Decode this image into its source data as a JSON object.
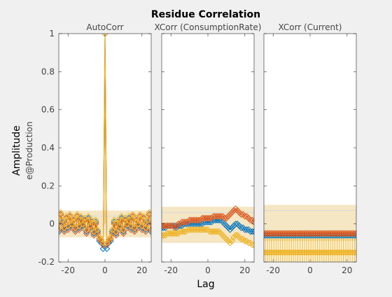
{
  "chart_data": {
    "type": "scatter",
    "title": "Residue Correlation",
    "xlabel": "Lag",
    "ylabel": "Amplitude",
    "ylabel_secondary": "e@Production",
    "ylim": [
      -0.2,
      1
    ],
    "yticks": [
      "-0.2",
      "0",
      "0.2",
      "0.4",
      "0.6",
      "0.8",
      "1"
    ],
    "xlim": [
      -25,
      25
    ],
    "xticks": [
      "-20",
      "0",
      "20"
    ],
    "colors": {
      "blue": "#0072bd",
      "orange": "#d95319",
      "yellow": "#edb120",
      "band": "#f5e6c4",
      "axes_bg": "#ffffff",
      "fig_bg": "#f0f0f0"
    },
    "panels": [
      {
        "title": "AutoCorr",
        "confidence_band": [
          -0.07,
          0.07
        ],
        "center_spike": {
          "series": "yellow",
          "x": 0,
          "y": 1
        },
        "series": [
          {
            "color": "blue",
            "values": [
              -0.04,
              0.05,
              0.01,
              -0.03,
              0.03,
              -0.02,
              0.04,
              -0.01,
              0.02,
              -0.03,
              0.04,
              -0.02,
              0.03,
              -0.01,
              0.02,
              -0.04,
              0.03,
              -0.02,
              0.01,
              -0.05,
              0.01,
              -0.04,
              -0.09,
              -0.1,
              -0.13,
              1.0,
              -0.13,
              -0.1,
              -0.09,
              -0.04,
              0.01,
              -0.05,
              0.01,
              -0.02,
              0.03,
              -0.04,
              0.02,
              -0.01,
              0.03,
              -0.02,
              0.04,
              -0.03,
              0.02,
              -0.01,
              0.04,
              -0.02,
              0.03,
              -0.03,
              0.01,
              0.05,
              -0.04
            ]
          },
          {
            "color": "orange",
            "values": [
              -0.03,
              0.05,
              0.0,
              -0.04,
              0.03,
              -0.03,
              0.04,
              -0.02,
              0.02,
              -0.04,
              0.04,
              -0.03,
              0.02,
              -0.02,
              0.02,
              -0.05,
              0.02,
              -0.03,
              0.0,
              -0.06,
              0.0,
              -0.05,
              -0.08,
              -0.09,
              -0.11,
              1.0,
              -0.11,
              -0.09,
              -0.08,
              -0.05,
              0.0,
              -0.06,
              0.0,
              -0.03,
              0.02,
              -0.05,
              0.02,
              -0.02,
              0.02,
              -0.03,
              0.04,
              -0.04,
              0.02,
              -0.02,
              0.04,
              -0.03,
              0.03,
              -0.04,
              0.0,
              0.05,
              -0.03
            ]
          },
          {
            "color": "yellow",
            "values": [
              -0.02,
              0.06,
              0.02,
              -0.02,
              0.04,
              -0.01,
              0.05,
              0.0,
              0.03,
              -0.02,
              0.05,
              -0.01,
              0.04,
              0.0,
              0.03,
              -0.03,
              0.04,
              -0.01,
              0.02,
              -0.04,
              0.02,
              -0.03,
              -0.07,
              -0.08,
              -0.1,
              1.0,
              -0.1,
              -0.08,
              -0.07,
              -0.03,
              0.02,
              -0.04,
              0.02,
              -0.01,
              0.04,
              -0.03,
              0.03,
              0.0,
              0.04,
              -0.01,
              0.05,
              -0.02,
              0.03,
              0.0,
              0.05,
              -0.01,
              0.04,
              -0.02,
              0.02,
              0.06,
              -0.02
            ]
          }
        ]
      },
      {
        "title": "XCorr (ConsumptionRate)",
        "confidence_band": [
          -0.1,
          0.09
        ],
        "series": [
          {
            "color": "blue",
            "values": [
              -0.02,
              -0.02,
              -0.02,
              -0.01,
              -0.01,
              -0.01,
              -0.01,
              -0.01,
              -0.02,
              -0.01,
              -0.01,
              -0.01,
              0.0,
              0.0,
              0.0,
              0.0,
              0.0,
              0.0,
              0.0,
              0.0,
              0.0,
              0.0,
              0.0,
              0.01,
              0.01,
              0.01,
              0.01,
              0.01,
              0.02,
              0.02,
              0.02,
              0.02,
              0.02,
              0.01,
              0.0,
              -0.01,
              -0.02,
              -0.03,
              -0.02,
              -0.01,
              0.0,
              0.0,
              -0.01,
              -0.02,
              -0.02,
              -0.03,
              -0.03,
              -0.03,
              -0.04,
              -0.04,
              -0.04
            ]
          },
          {
            "color": "orange",
            "values": [
              -0.01,
              -0.01,
              -0.01,
              -0.01,
              -0.01,
              -0.01,
              -0.01,
              -0.02,
              -0.01,
              0.0,
              0.0,
              0.01,
              0.01,
              0.01,
              0.01,
              0.02,
              0.02,
              0.02,
              0.02,
              0.02,
              0.02,
              0.02,
              0.03,
              0.03,
              0.03,
              0.03,
              0.03,
              0.03,
              0.04,
              0.04,
              0.04,
              0.04,
              0.04,
              0.04,
              0.03,
              0.03,
              0.04,
              0.05,
              0.06,
              0.07,
              0.08,
              0.07,
              0.06,
              0.05,
              0.05,
              0.04,
              0.04,
              0.03,
              0.02,
              0.02,
              0.01
            ]
          },
          {
            "color": "yellow",
            "values": [
              -0.06,
              -0.06,
              -0.06,
              -0.05,
              -0.05,
              -0.05,
              -0.05,
              -0.05,
              -0.05,
              -0.05,
              -0.04,
              -0.04,
              -0.04,
              -0.04,
              -0.03,
              -0.03,
              -0.03,
              -0.03,
              -0.03,
              -0.03,
              -0.03,
              -0.03,
              -0.03,
              -0.03,
              -0.03,
              -0.03,
              -0.04,
              -0.04,
              -0.04,
              -0.04,
              -0.04,
              -0.04,
              -0.05,
              -0.06,
              -0.07,
              -0.08,
              -0.09,
              -0.1,
              -0.09,
              -0.07,
              -0.06,
              -0.06,
              -0.07,
              -0.08,
              -0.08,
              -0.09,
              -0.09,
              -0.1,
              -0.1,
              -0.11,
              -0.11
            ]
          }
        ]
      },
      {
        "title": "XCorr (Current)",
        "confidence_band": [
          -0.09,
          0.1
        ],
        "error_bars": {
          "series": "yellow",
          "halfwidth": 0.08
        },
        "series": [
          {
            "color": "blue",
            "values": [
              -0.06,
              -0.06,
              -0.06,
              -0.06,
              -0.06,
              -0.06,
              -0.06,
              -0.06,
              -0.06,
              -0.06,
              -0.06,
              -0.06,
              -0.06,
              -0.06,
              -0.06,
              -0.06,
              -0.06,
              -0.06,
              -0.06,
              -0.06,
              -0.06,
              -0.06,
              -0.06,
              -0.06,
              -0.06,
              -0.06,
              -0.06,
              -0.06,
              -0.06,
              -0.06,
              -0.06,
              -0.06,
              -0.06,
              -0.06,
              -0.06,
              -0.06,
              -0.06,
              -0.06,
              -0.06,
              -0.06,
              -0.06,
              -0.06,
              -0.06,
              -0.06,
              -0.06,
              -0.06,
              -0.06,
              -0.06,
              -0.06,
              -0.06,
              -0.06
            ]
          },
          {
            "color": "orange",
            "values": [
              -0.05,
              -0.05,
              -0.05,
              -0.05,
              -0.05,
              -0.05,
              -0.05,
              -0.05,
              -0.05,
              -0.05,
              -0.05,
              -0.05,
              -0.05,
              -0.05,
              -0.05,
              -0.05,
              -0.05,
              -0.05,
              -0.05,
              -0.05,
              -0.05,
              -0.05,
              -0.05,
              -0.05,
              -0.05,
              -0.05,
              -0.05,
              -0.05,
              -0.05,
              -0.05,
              -0.05,
              -0.05,
              -0.05,
              -0.05,
              -0.05,
              -0.05,
              -0.05,
              -0.05,
              -0.05,
              -0.05,
              -0.05,
              -0.05,
              -0.05,
              -0.05,
              -0.05,
              -0.05,
              -0.05,
              -0.05,
              -0.05,
              -0.05,
              -0.05
            ]
          },
          {
            "color": "yellow",
            "values": [
              -0.15,
              -0.15,
              -0.15,
              -0.15,
              -0.15,
              -0.15,
              -0.15,
              -0.15,
              -0.15,
              -0.15,
              -0.15,
              -0.15,
              -0.15,
              -0.15,
              -0.15,
              -0.15,
              -0.15,
              -0.15,
              -0.15,
              -0.15,
              -0.15,
              -0.15,
              -0.15,
              -0.15,
              -0.15,
              -0.15,
              -0.15,
              -0.15,
              -0.15,
              -0.15,
              -0.15,
              -0.15,
              -0.15,
              -0.15,
              -0.15,
              -0.15,
              -0.15,
              -0.15,
              -0.15,
              -0.15,
              -0.15,
              -0.15,
              -0.15,
              -0.15,
              -0.15,
              -0.15,
              -0.15,
              -0.15,
              -0.15,
              -0.15,
              -0.15
            ]
          }
        ]
      }
    ]
  }
}
